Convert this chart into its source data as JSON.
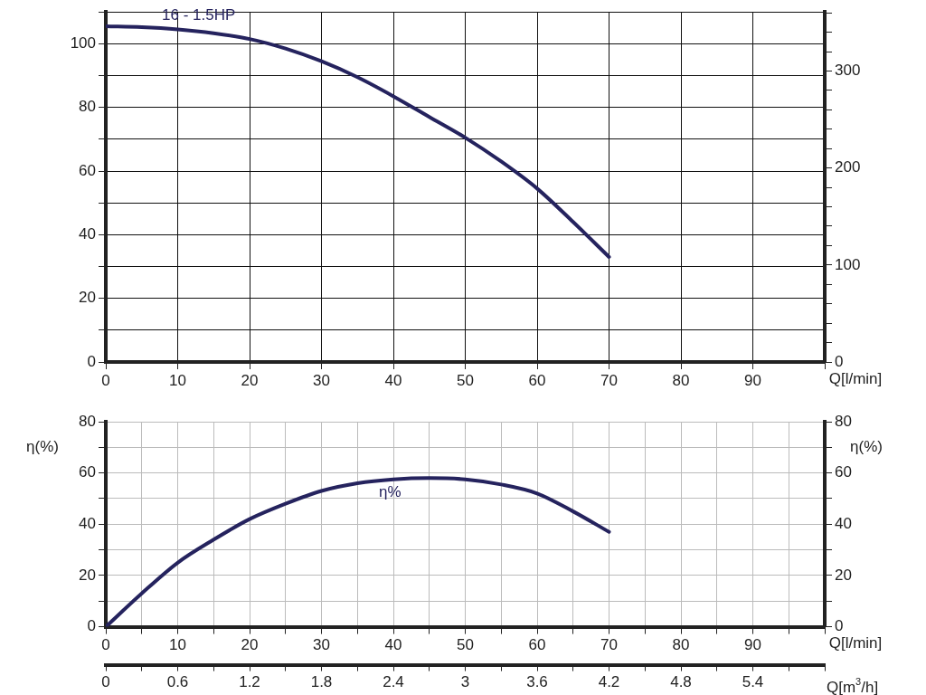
{
  "chart_data": [
    {
      "type": "line",
      "x": [
        0,
        5,
        10,
        15,
        20,
        25,
        30,
        35,
        40,
        45,
        50,
        55,
        60,
        65,
        70
      ],
      "series": [
        {
          "color": "#25235e",
          "values": [
            105.5,
            105.2,
            104.5,
            103.3,
            101.5,
            98.5,
            94.5,
            89.5,
            83.5,
            77,
            70.5,
            63,
            54.5,
            44,
            33
          ]
        }
      ],
      "xlim": [
        0,
        100
      ],
      "xticks": [
        0,
        10,
        20,
        30,
        40,
        50,
        60,
        70,
        80,
        90,
        {
          "value": 100,
          "label": null
        }
      ],
      "xlabel": "Q[l/min]",
      "ylim": [
        0,
        110
      ],
      "yticks": [
        0,
        {
          "value": 10,
          "label": null
        },
        20,
        {
          "value": 30,
          "label": null
        },
        40,
        {
          "value": 50,
          "label": null
        },
        60,
        {
          "value": 70,
          "label": null
        },
        80,
        {
          "value": 90,
          "label": null
        },
        100,
        {
          "value": 110,
          "label": null
        }
      ],
      "y2lim": [
        0,
        361
      ],
      "y2ticks": [
        0,
        {
          "value": 20,
          "label": null
        },
        {
          "value": 40,
          "label": null
        },
        {
          "value": 60,
          "label": null
        },
        {
          "value": 80,
          "label": null
        },
        100,
        {
          "value": 120,
          "label": null
        },
        {
          "value": 140,
          "label": null
        },
        {
          "value": 160,
          "label": null
        },
        {
          "value": 180,
          "label": null
        },
        200,
        {
          "value": 220,
          "label": null
        },
        {
          "value": 240,
          "label": null
        },
        {
          "value": 260,
          "label": null
        },
        {
          "value": 280,
          "label": null
        },
        300,
        {
          "value": 320,
          "label": null
        },
        {
          "value": 340,
          "label": null
        },
        {
          "value": 360,
          "label": null
        }
      ],
      "grid": true,
      "annotations": [
        "16 - 1.5HP"
      ]
    },
    {
      "type": "line",
      "x": [
        0,
        5,
        10,
        15,
        20,
        25,
        30,
        35,
        40,
        45,
        50,
        55,
        60,
        65,
        70
      ],
      "series": [
        {
          "color": "#25235e",
          "values": [
            0,
            13,
            25,
            34,
            42,
            48,
            53,
            56,
            57.5,
            58,
            57.5,
            55.5,
            52,
            45,
            37
          ]
        }
      ],
      "xlim": [
        0,
        100
      ],
      "xticks": [
        0,
        {
          "value": 5,
          "label": null
        },
        10,
        {
          "value": 15,
          "label": null
        },
        20,
        {
          "value": 25,
          "label": null
        },
        30,
        {
          "value": 35,
          "label": null
        },
        40,
        {
          "value": 45,
          "label": null
        },
        50,
        {
          "value": 55,
          "label": null
        },
        60,
        {
          "value": 65,
          "label": null
        },
        70,
        {
          "value": 75,
          "label": null
        },
        80,
        {
          "value": 85,
          "label": null
        },
        90,
        {
          "value": 95,
          "label": null
        },
        {
          "value": 100,
          "label": null
        }
      ],
      "xlabel": "Q[l/min]",
      "ylim": [
        0,
        80
      ],
      "yticks": [
        0,
        {
          "value": 10,
          "label": null
        },
        20,
        {
          "value": 30,
          "label": null
        },
        40,
        {
          "value": 50,
          "label": null
        },
        60,
        {
          "value": 70,
          "label": null
        },
        80
      ],
      "ylabel": "η(%)",
      "y2lim": [
        0,
        80
      ],
      "y2ticks": [
        0,
        {
          "value": 10,
          "label": null
        },
        20,
        {
          "value": 30,
          "label": null
        },
        40,
        {
          "value": 50,
          "label": null
        },
        60,
        {
          "value": 70,
          "label": null
        },
        80
      ],
      "y2label": "η(%)",
      "x2lim": [
        0,
        6
      ],
      "x2ticks": [
        0,
        {
          "value": 0.3,
          "label": null
        },
        0.6,
        {
          "value": 0.9,
          "label": null
        },
        1.2,
        {
          "value": 1.5,
          "label": null
        },
        1.8,
        {
          "value": 2.1,
          "label": null
        },
        2.4,
        {
          "value": 2.7,
          "label": null
        },
        3,
        {
          "value": 3.3,
          "label": null
        },
        3.6,
        {
          "value": 3.9,
          "label": null
        },
        4.2,
        {
          "value": 4.5,
          "label": null
        },
        4.8,
        {
          "value": 5.1,
          "label": null
        },
        5.4,
        {
          "value": 5.7,
          "label": null
        },
        {
          "value": 6,
          "label": null
        }
      ],
      "x2label": "Q[m$^{3}$/h]",
      "grid": true,
      "annotations": [
        "η%"
      ]
    }
  ]
}
